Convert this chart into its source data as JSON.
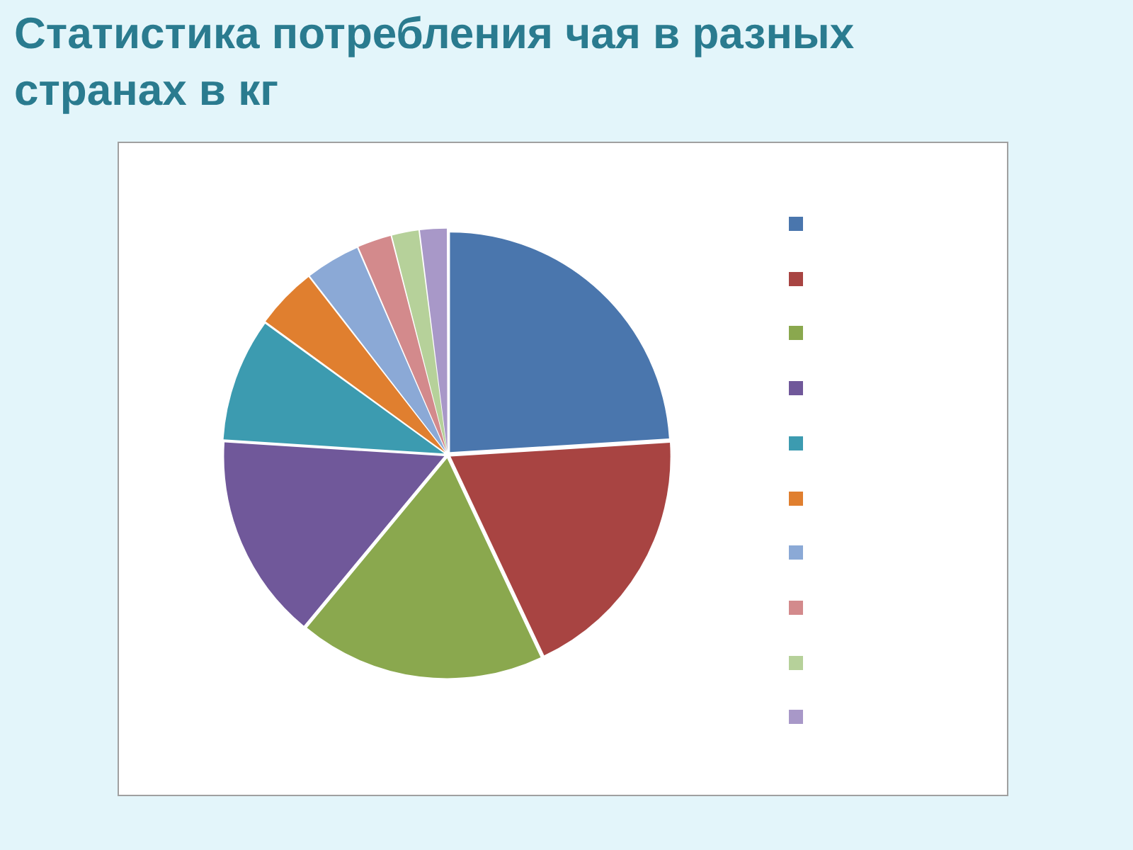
{
  "chart_data": {
    "type": "pie",
    "title": "Статистика потребления чая в разных странах в кг",
    "categories": [
      null,
      null,
      null,
      null,
      null,
      null,
      null,
      null,
      null,
      null
    ],
    "values": [
      24,
      19,
      18,
      15,
      9,
      4.5,
      4,
      2.5,
      2,
      2
    ],
    "colors": [
      "#4a76ad",
      "#a84442",
      "#8aa84e",
      "#70589a",
      "#3c9bb0",
      "#e07f2f",
      "#8ba9d6",
      "#d38a8c",
      "#b6d19a",
      "#a898c8"
    ]
  }
}
